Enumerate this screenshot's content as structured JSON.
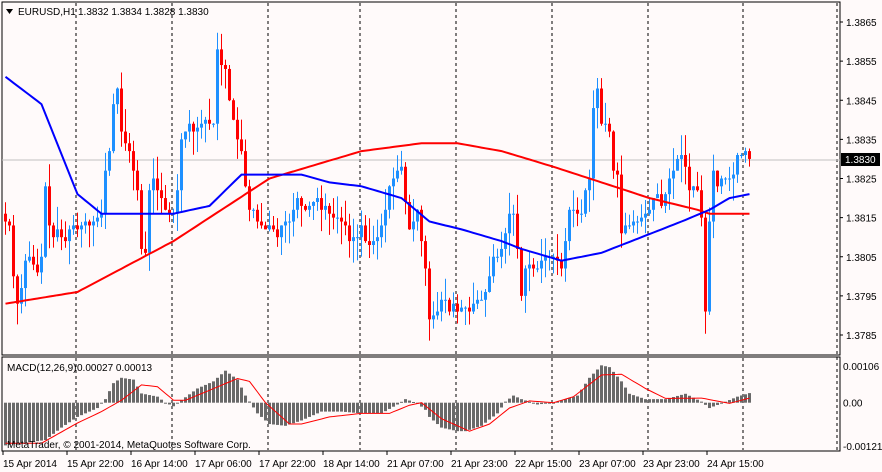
{
  "header": {
    "menu_icon": "triangle-down-icon",
    "symbol": "EURUSD,H1",
    "ohlc": "1.3832 1.3834 1.3828 1.3830"
  },
  "macd_header": {
    "name": "MACD(12,26,9)",
    "values": "0.00027 0.00013"
  },
  "copyright": "MetaTrader, © 2001-2014, MetaQuotes Software Corp.",
  "colors": {
    "background": "#fffafa",
    "bull": "#1e90ff",
    "bear": "#ff0000",
    "ma_fast": "#0000ff",
    "ma_slow": "#ff0000",
    "histogram": "#696969",
    "signal": "#ff0000",
    "price_line": "#c0c0c0"
  },
  "chart_data": [
    {
      "type": "candlestick",
      "title": "EURUSD,H1",
      "ylabel": "Price",
      "ylim": [
        1.3779,
        1.387
      ],
      "yticks": [
        "1.3865",
        "1.3855",
        "1.3845",
        "1.3835",
        "1.3825",
        "1.3815",
        "1.3805",
        "1.3795",
        "1.3785"
      ],
      "current_price": "1.3830",
      "xticks": [
        "15 Apr 2014",
        "15 Apr 22:00",
        "16 Apr 14:00",
        "17 Apr 06:00",
        "17 Apr 22:00",
        "18 Apr 14:00",
        "21 Apr 07:00",
        "21 Apr 23:00",
        "22 Apr 15:00",
        "23 Apr 07:00",
        "23 Apr 23:00",
        "24 Apr 15:00"
      ],
      "close": [
        1.3814,
        1.3813,
        1.38,
        1.3793,
        1.3797,
        1.3804,
        1.3805,
        1.3803,
        1.3801,
        1.3805,
        1.3823,
        1.3813,
        1.381,
        1.3812,
        1.381,
        1.3809,
        1.3812,
        1.3813,
        1.3812,
        1.3813,
        1.3814,
        1.3813,
        1.3814,
        1.3815,
        1.3816,
        1.3827,
        1.3832,
        1.3844,
        1.3848,
        1.3837,
        1.3834,
        1.3832,
        1.3827,
        1.3822,
        1.3807,
        1.3806,
        1.3822,
        1.3825,
        1.3822,
        1.382,
        1.3817,
        1.3816,
        1.3816,
        1.3822,
        1.3835,
        1.3837,
        1.3839,
        1.3837,
        1.3838,
        1.3839,
        1.384,
        1.3839,
        1.3839,
        1.3858,
        1.3854,
        1.3853,
        1.3845,
        1.384,
        1.3835,
        1.3832,
        1.3823,
        1.3817,
        1.3817,
        1.3814,
        1.3813,
        1.3812,
        1.3813,
        1.3812,
        1.381,
        1.3813,
        1.3814,
        1.3814,
        1.3817,
        1.382,
        1.3818,
        1.3817,
        1.3818,
        1.3819,
        1.382,
        1.3817,
        1.3818,
        1.3816,
        1.3815,
        1.3815,
        1.3814,
        1.3813,
        1.3809,
        1.381,
        1.381,
        1.3813,
        1.3809,
        1.3808,
        1.3809,
        1.381,
        1.3813,
        1.3817,
        1.3823,
        1.3825,
        1.3827,
        1.3828,
        1.3819,
        1.3812,
        1.3814,
        1.3817,
        1.3809,
        1.3802,
        1.3789,
        1.379,
        1.3791,
        1.3794,
        1.3794,
        1.3791,
        1.3793,
        1.3791,
        1.3792,
        1.3792,
        1.3791,
        1.3793,
        1.3794,
        1.3794,
        1.3796,
        1.38,
        1.3805,
        1.3805,
        1.3807,
        1.3811,
        1.3816,
        1.3816,
        1.3807,
        1.3795,
        1.3802,
        1.3803,
        1.3802,
        1.3802,
        1.3804,
        1.3805,
        1.3805,
        1.3805,
        1.3804,
        1.3802,
        1.3809,
        1.3817,
        1.3817,
        1.3816,
        1.3816,
        1.3822,
        1.3825,
        1.3843,
        1.3848,
        1.3839,
        1.3839,
        1.3837,
        1.3827,
        1.3826,
        1.3811,
        1.3813,
        1.3813,
        1.3814,
        1.3814,
        1.3815,
        1.3816,
        1.3817,
        1.382,
        1.3821,
        1.3818,
        1.3821,
        1.3825,
        1.3827,
        1.383,
        1.3831,
        1.3828,
        1.3822,
        1.3823,
        1.3822,
        1.3815,
        1.3791,
        1.3814,
        1.3827,
        1.3823,
        1.3825,
        1.3825,
        1.3825,
        1.3826,
        1.3831,
        1.3831,
        1.3832,
        1.383
      ],
      "ma_fast_points": [
        [
          0,
          1.3851
        ],
        [
          9,
          1.3844
        ],
        [
          18,
          1.3821
        ],
        [
          24,
          1.3816
        ],
        [
          34,
          1.3816
        ],
        [
          42,
          1.3816
        ],
        [
          51,
          1.3818
        ],
        [
          59,
          1.3826
        ],
        [
          66,
          1.3826
        ],
        [
          74,
          1.3826
        ],
        [
          81,
          1.3824
        ],
        [
          89,
          1.3823
        ],
        [
          99,
          1.382
        ],
        [
          106,
          1.3814
        ],
        [
          114,
          1.3812
        ],
        [
          124,
          1.3809
        ],
        [
          129,
          1.3807
        ],
        [
          139,
          1.3804
        ],
        [
          149,
          1.3806
        ],
        [
          159,
          1.381
        ],
        [
          169,
          1.3814
        ],
        [
          176,
          1.3817
        ],
        [
          181,
          1.382
        ],
        [
          186,
          1.3821
        ]
      ],
      "ma_slow_points": [
        [
          0,
          1.3793
        ],
        [
          18,
          1.3796
        ],
        [
          42,
          1.3809
        ],
        [
          66,
          1.3825
        ],
        [
          89,
          1.3832
        ],
        [
          104,
          1.3834
        ],
        [
          113,
          1.3834
        ],
        [
          124,
          1.3832
        ],
        [
          137,
          1.3828
        ],
        [
          149,
          1.3824
        ],
        [
          161,
          1.382
        ],
        [
          173,
          1.3817
        ],
        [
          176,
          1.3816
        ],
        [
          186,
          1.3816
        ]
      ]
    },
    {
      "type": "bar",
      "title": "MACD(12,26,9)",
      "ylim": [
        -0.00121,
        0.00106
      ],
      "yticks": [
        "0.00106",
        "0.00",
        "-0.00121"
      ],
      "histogram_points": [
        [
          0,
          -0.0012
        ],
        [
          10,
          -0.00105
        ],
        [
          14,
          -0.0007
        ],
        [
          18,
          -0.0004
        ],
        [
          23,
          -0.00015
        ],
        [
          25,
          0.0001
        ],
        [
          27,
          0.00055
        ],
        [
          29,
          0.0007
        ],
        [
          32,
          0.00065
        ],
        [
          34,
          0.00026
        ],
        [
          38,
          0.00017
        ],
        [
          40,
          0.0
        ],
        [
          42,
          -0.0001
        ],
        [
          44,
          7e-05
        ],
        [
          48,
          0.0004
        ],
        [
          52,
          0.0006
        ],
        [
          55,
          0.0009
        ],
        [
          58,
          0.00065
        ],
        [
          60,
          0.0002
        ],
        [
          63,
          -0.0003
        ],
        [
          66,
          -0.0006
        ],
        [
          70,
          -0.00065
        ],
        [
          74,
          -0.0005
        ],
        [
          79,
          -0.00025
        ],
        [
          84,
          -0.00025
        ],
        [
          89,
          -0.0003
        ],
        [
          94,
          -0.0003
        ],
        [
          98,
          -5e-05
        ],
        [
          100,
          0.0001
        ],
        [
          103,
          -2e-05
        ],
        [
          105,
          -0.0002
        ],
        [
          106,
          -0.0004
        ],
        [
          109,
          -0.0007
        ],
        [
          113,
          -0.0008
        ],
        [
          115,
          -0.0008
        ],
        [
          119,
          -0.00065
        ],
        [
          123,
          -0.0003
        ],
        [
          125,
          3e-05
        ],
        [
          127,
          0.0002
        ],
        [
          129,
          0.0001
        ],
        [
          133,
          -5e-05
        ],
        [
          137,
          0.0
        ],
        [
          140,
          0.0001
        ],
        [
          143,
          0.0002
        ],
        [
          146,
          0.0007
        ],
        [
          149,
          0.00105
        ],
        [
          151,
          0.001
        ],
        [
          154,
          0.0006
        ],
        [
          156,
          0.00025
        ],
        [
          160,
          0.0001
        ],
        [
          165,
          0.0001
        ],
        [
          170,
          0.00025
        ],
        [
          174,
          3e-05
        ],
        [
          176,
          -0.00015
        ],
        [
          179,
          -2e-05
        ],
        [
          183,
          0.00017
        ],
        [
          186,
          0.00027
        ]
      ],
      "signal_points": [
        [
          0,
          -0.00114
        ],
        [
          9,
          -0.00114
        ],
        [
          18,
          -0.00057
        ],
        [
          24,
          -0.00025
        ],
        [
          29,
          7e-05
        ],
        [
          34,
          0.0005
        ],
        [
          38,
          0.00045
        ],
        [
          42,
          7e-05
        ],
        [
          45,
          7e-05
        ],
        [
          51,
          0.00035
        ],
        [
          58,
          0.00068
        ],
        [
          61,
          0.0006
        ],
        [
          65,
          0.0
        ],
        [
          71,
          -0.0006
        ],
        [
          74,
          -0.0006
        ],
        [
          81,
          -0.0004
        ],
        [
          89,
          -0.0003
        ],
        [
          96,
          -0.0003
        ],
        [
          101,
          -7e-05
        ],
        [
          104,
          0.0
        ],
        [
          109,
          -0.00045
        ],
        [
          116,
          -0.0008
        ],
        [
          121,
          -0.0006
        ],
        [
          126,
          -0.00015
        ],
        [
          131,
          5e-05
        ],
        [
          137,
          0.0
        ],
        [
          142,
          0.00017
        ],
        [
          149,
          0.00078
        ],
        [
          154,
          0.0008
        ],
        [
          160,
          0.0004
        ],
        [
          165,
          0.00012
        ],
        [
          174,
          0.00013
        ],
        [
          181,
          -2e-05
        ],
        [
          186,
          0.00013
        ]
      ]
    }
  ]
}
